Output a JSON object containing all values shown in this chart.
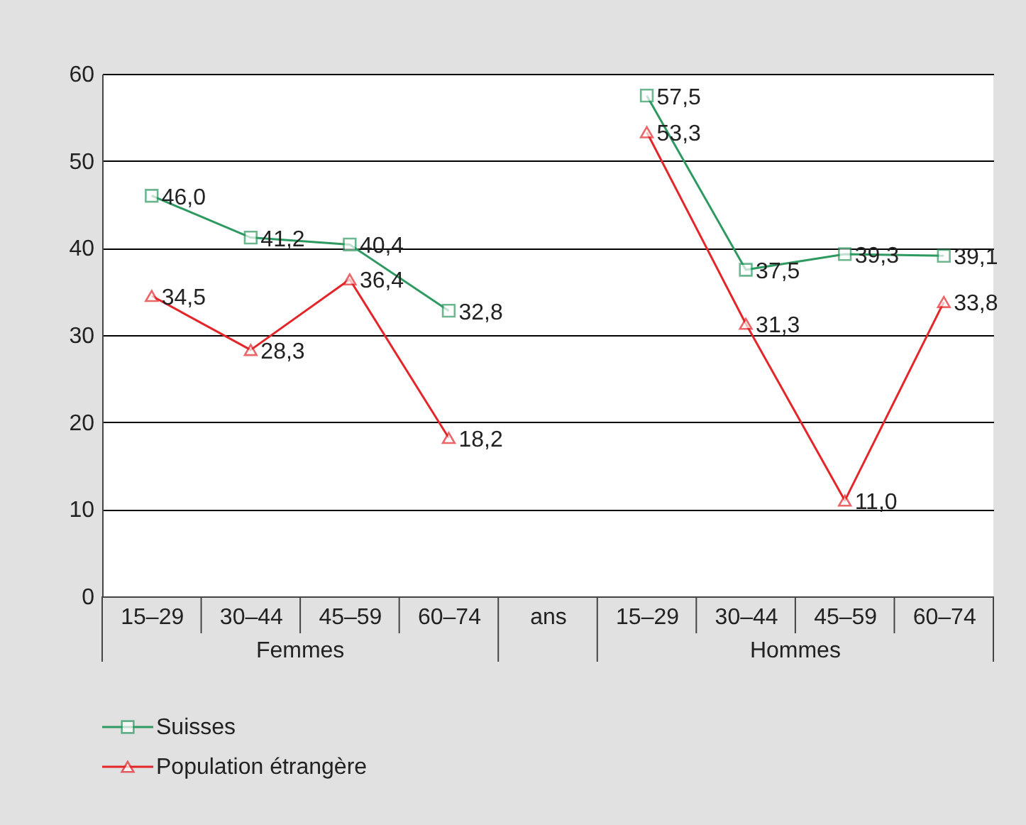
{
  "chart_data": {
    "type": "line",
    "categories": [
      "15–29",
      "30–44",
      "45–59",
      "60–74",
      "ans",
      "15–29",
      "30–44",
      "45–59",
      "60–74"
    ],
    "series": [
      {
        "name": "Suisses",
        "color": "#2e9a62",
        "marker": "square",
        "values": [
          46.0,
          41.2,
          40.4,
          32.8,
          null,
          57.5,
          37.5,
          39.3,
          39.1
        ],
        "value_labels": [
          "46,0",
          "41,2",
          "40,4",
          "32,8",
          null,
          "57,5",
          "37,5",
          "39,3",
          "39,1"
        ]
      },
      {
        "name": "Population étrangère",
        "color": "#e3262a",
        "marker": "triangle",
        "values": [
          34.5,
          28.3,
          36.4,
          18.2,
          null,
          53.3,
          31.3,
          11.0,
          33.8
        ],
        "value_labels": [
          "34,5",
          "28,3",
          "36,4",
          "18,2",
          null,
          "53,3",
          "31,3",
          "11,0",
          "33,8"
        ]
      }
    ],
    "annotations": [
      "Femmes",
      "Hommes"
    ],
    "ylim": [
      0,
      60
    ],
    "yticks": [
      0,
      10,
      20,
      30,
      40,
      50,
      60
    ],
    "grid": "y",
    "legend": "bottom left"
  }
}
